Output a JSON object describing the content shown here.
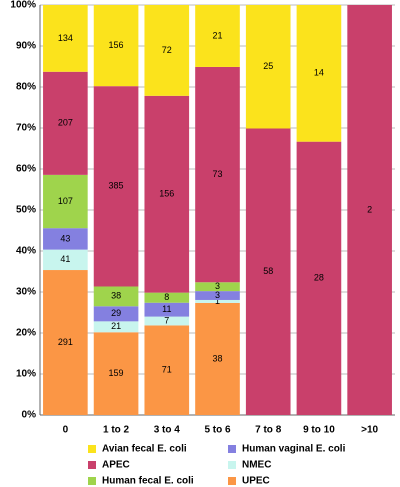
{
  "chart_data": {
    "type": "bar",
    "stacking": "percent",
    "categories": [
      "0",
      "1 to 2",
      "3 to 4",
      "5 to 6",
      "7 to 8",
      "9 to 10",
      ">10"
    ],
    "series": [
      {
        "name": "UPEC",
        "color": "#fb9645",
        "values": [
          291,
          159,
          71,
          38,
          0,
          0,
          0
        ]
      },
      {
        "name": "NMEC",
        "color": "#c8f5ee",
        "values": [
          41,
          21,
          7,
          1,
          0,
          0,
          0
        ]
      },
      {
        "name": "Human vaginal E. coli",
        "color": "#8480e0",
        "values": [
          43,
          29,
          11,
          3,
          0,
          0,
          0
        ]
      },
      {
        "name": "Human fecal E. coli",
        "color": "#9fd44c",
        "values": [
          107,
          38,
          8,
          3,
          0,
          0,
          0
        ]
      },
      {
        "name": "APEC",
        "color": "#c9406b",
        "values": [
          207,
          385,
          156,
          73,
          58,
          28,
          2
        ]
      },
      {
        "name": "Avian fecal E. coli",
        "color": "#fbe31c",
        "values": [
          134,
          156,
          72,
          21,
          25,
          14,
          0
        ]
      }
    ],
    "ylim": [
      0,
      100
    ],
    "yticks": [
      {
        "value": 0,
        "label": "0%"
      },
      {
        "value": 10,
        "label": "10%"
      },
      {
        "value": 20,
        "label": "20%"
      },
      {
        "value": 30,
        "label": "30%"
      },
      {
        "value": 40,
        "label": "40%"
      },
      {
        "value": 50,
        "label": "50%"
      },
      {
        "value": 60,
        "label": "60%"
      },
      {
        "value": 70,
        "label": "70%"
      },
      {
        "value": 80,
        "label": "80%"
      },
      {
        "value": 90,
        "label": "90%"
      },
      {
        "value": 100,
        "label": "100%"
      }
    ],
    "grid": true,
    "legend": "bottom"
  }
}
